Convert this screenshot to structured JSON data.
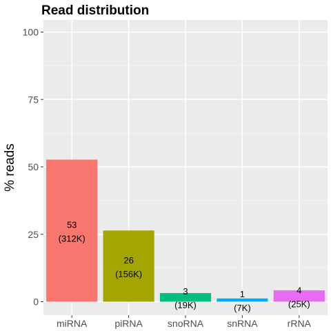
{
  "chart_data": {
    "type": "bar",
    "title": "Read distribution",
    "xlabel": "",
    "ylabel": "% reads",
    "categories": [
      "miRNA",
      "piRNA",
      "snoRNA",
      "snRNA",
      "rRNA"
    ],
    "values": [
      52.7,
      26.4,
      3.2,
      1.2,
      4.2
    ],
    "bar_labels": [
      {
        "pct": "53",
        "count": "(312K)"
      },
      {
        "pct": "26",
        "count": "(156K)"
      },
      {
        "pct": "3",
        "count": "(19K)"
      },
      {
        "pct": "1",
        "count": "(7K)"
      },
      {
        "pct": "4",
        "count": "(25K)"
      }
    ],
    "colors": [
      "#F8766D",
      "#A3A500",
      "#00BF7D",
      "#00B0F6",
      "#E76BF3"
    ],
    "yticks": [
      "0",
      "25",
      "50",
      "75",
      "100"
    ],
    "ylim": [
      0,
      100
    ],
    "grid": true,
    "legend": "none",
    "panel_background": "#EBEBEB"
  }
}
